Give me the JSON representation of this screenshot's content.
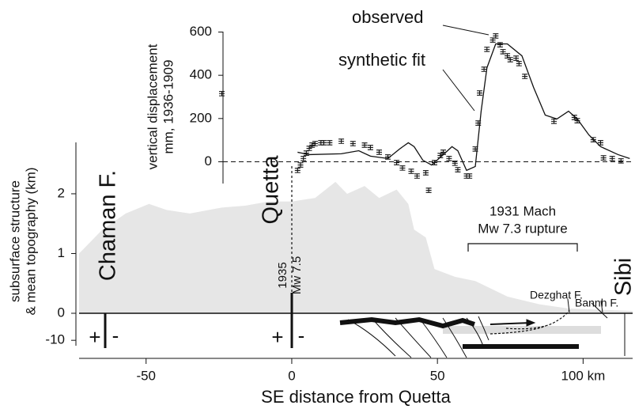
{
  "chart_data": [
    {
      "type": "scatter",
      "ylabel": [
        "vertical displacement",
        "mm, 1936-1909"
      ],
      "ylim": [
        -100,
        600
      ],
      "yticks": [
        0,
        200,
        400,
        600
      ],
      "series": [
        {
          "name": "observed",
          "color": "#111111",
          "error_bar": 10,
          "x": [
            -24,
            2,
            3,
            4,
            5,
            6,
            7,
            8,
            10,
            11,
            13,
            17,
            21,
            25,
            27,
            30,
            33,
            36,
            38,
            41,
            43,
            46,
            47,
            49,
            51,
            52,
            54,
            56,
            57,
            60,
            61,
            63,
            64,
            64.5,
            66,
            67,
            69,
            70,
            71.5,
            72.5,
            74,
            75,
            77,
            78,
            80,
            90,
            97,
            98,
            103.5,
            106,
            107,
            110,
            113
          ],
          "values": [
            315,
            -40,
            -15,
            15,
            40,
            62,
            77,
            84,
            88,
            88,
            88,
            95,
            84,
            77,
            66,
            44,
            22,
            -4,
            -29,
            -44,
            -66,
            -51,
            -132,
            -4,
            29,
            44,
            15,
            -7,
            -37,
            -66,
            -66,
            59,
            179,
            318,
            428,
            520,
            563,
            582,
            541,
            509,
            490,
            472,
            479,
            454,
            395,
            187,
            205,
            190,
            102,
            88,
            18,
            15,
            4
          ]
        },
        {
          "name": "synthetic fit",
          "color": "#111111",
          "style": "line",
          "x": [
            2,
            6,
            17,
            23,
            27,
            33,
            37,
            40,
            42,
            45,
            48,
            52,
            55,
            57,
            60,
            63,
            65,
            67,
            70,
            74,
            79,
            83,
            87,
            91,
            95,
            98,
            102,
            106,
            112,
            116
          ],
          "values": [
            44,
            33,
            37,
            51,
            26,
            15,
            59,
            88,
            70,
            7,
            -15,
            33,
            70,
            51,
            -40,
            -22,
            234,
            435,
            545,
            545,
            490,
            344,
            216,
            198,
            234,
            198,
            124,
            70,
            33,
            15
          ]
        }
      ]
    },
    {
      "type": "area",
      "ylabel": [
        "subsurface structure",
        "& mean topography (km)"
      ],
      "ylim": [
        0,
        2.86
      ],
      "yticks": [
        0,
        1,
        2
      ],
      "labels": [
        "Chaman F.",
        "Quetta",
        "1935",
        "Mw 7.5",
        "1931 Mach",
        "Mw 7.3 rupture",
        "Dezghat F.",
        "Bannh F.",
        "Sibi",
        "+",
        "-",
        "+",
        "-"
      ],
      "series": [
        {
          "name": "mean topography",
          "color": "#e6e6e6",
          "x": [
            -73,
            -65,
            -57,
            -49,
            -43,
            -35,
            -24,
            -16,
            -8,
            0,
            8,
            15,
            19,
            25,
            30,
            36,
            40,
            42,
            46,
            49,
            56,
            63,
            74,
            85,
            95,
            117
          ],
          "values": [
            1.0,
            1.4,
            1.67,
            1.83,
            1.73,
            1.67,
            1.77,
            1.8,
            1.87,
            1.87,
            1.93,
            2.2,
            2.0,
            2.13,
            1.93,
            2.07,
            1.83,
            1.4,
            1.27,
            0.74,
            0.61,
            0.54,
            0.28,
            0.15,
            0.08,
            0.04
          ]
        }
      ]
    },
    {
      "type": "structure",
      "xlabel": "SE distance from Quetta",
      "xlim": [
        -73,
        117
      ],
      "xticks": [
        -50,
        0,
        50,
        {
          "value": 100,
          "label": "100 km"
        }
      ],
      "ylim": [
        -12,
        0
      ],
      "yticks": [
        -10
      ]
    }
  ]
}
